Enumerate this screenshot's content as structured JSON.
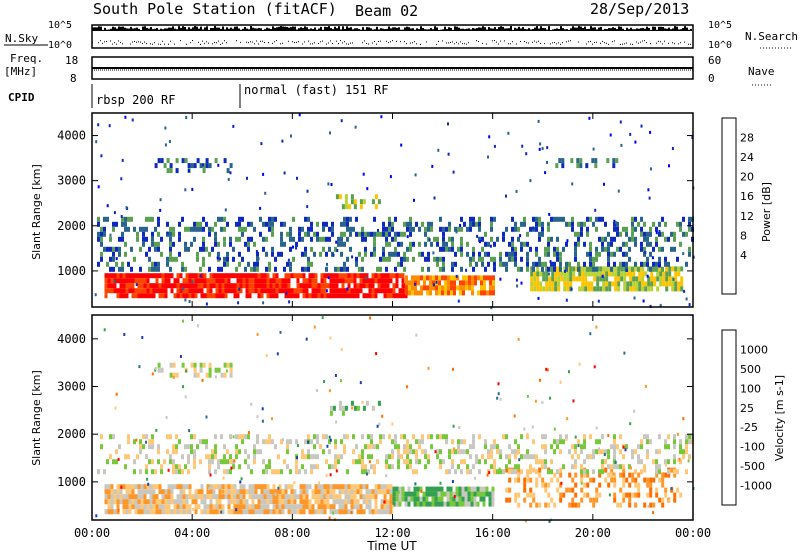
{
  "header": {
    "station": "South Pole Station (fitACF)",
    "beam": "Beam 02",
    "date": "28/Sep/2013"
  },
  "top_panels": {
    "nsky_label": "N.Sky",
    "nsky_ticks": [
      "10^5",
      "10^0"
    ],
    "nsearch_label": "N.Search",
    "nsearch_ticks": [
      "10^5",
      "10^0"
    ],
    "freq_label": "Freq.",
    "freq_unit": "[MHz]",
    "freq_ticks": [
      "18",
      "8"
    ],
    "nave_label": "Nave",
    "nave_ticks": [
      "60",
      "0"
    ],
    "cpid_label": "CPID",
    "cpid_segments": [
      {
        "label": "rbsp 200 RF",
        "start_hour": 0
      },
      {
        "label": "normal (fast) 151 RF",
        "start_hour": 6
      }
    ]
  },
  "chart_data": [
    {
      "type": "heatmap",
      "title": "",
      "xlabel": "Time UT",
      "ylabel": "Slant Range [km]",
      "xlim_hours": [
        0,
        24
      ],
      "ylim_km": [
        200,
        4500
      ],
      "x_tick_labels": [
        "00:00",
        "04:00",
        "08:00",
        "12:00",
        "16:00",
        "20:00",
        "00:00"
      ],
      "y_tick_labels": [
        "1000",
        "2000",
        "3000",
        "4000"
      ],
      "colorbar": {
        "label": "Power [dB]",
        "tick_labels": [
          "28",
          "24",
          "20",
          "16",
          "12",
          "8",
          "4"
        ],
        "colors": [
          "#ff0000",
          "#ff4400",
          "#ff8c00",
          "#ffc400",
          "#b9d232",
          "#5aa050",
          "#28648c",
          "#0f28be",
          "#0000ff"
        ]
      },
      "regions": [
        {
          "t_start": 0.5,
          "t_end": 12.5,
          "r_min": 400,
          "r_max": 950,
          "level": "very high power",
          "value_db": 28
        },
        {
          "t_start": 12.5,
          "t_end": 16.0,
          "r_min": 500,
          "r_max": 900,
          "level": "high power",
          "value_db": 22
        },
        {
          "t_start": 17.5,
          "t_end": 23.5,
          "r_min": 600,
          "r_max": 1100,
          "level": "moderate power",
          "value_db": 16
        },
        {
          "t_start": 0.2,
          "t_end": 24.0,
          "r_min": 1000,
          "r_max": 2200,
          "level": "low power",
          "value_db": 8
        },
        {
          "t_start": 2.5,
          "t_end": 5.5,
          "r_min": 3200,
          "r_max": 3500,
          "level": "low power",
          "value_db": 8
        },
        {
          "t_start": 9.5,
          "t_end": 11.5,
          "r_min": 2400,
          "r_max": 2700,
          "level": "moderate power",
          "value_db": 14
        },
        {
          "t_start": 18.5,
          "t_end": 21.0,
          "r_min": 3300,
          "r_max": 3500,
          "level": "low power",
          "value_db": 8
        }
      ]
    },
    {
      "type": "heatmap",
      "title": "",
      "xlabel": "Time UT",
      "ylabel": "Slant Range [km]",
      "xlim_hours": [
        0,
        24
      ],
      "ylim_km": [
        200,
        4500
      ],
      "x_tick_labels": [
        "00:00",
        "04:00",
        "08:00",
        "12:00",
        "16:00",
        "20:00",
        "00:00"
      ],
      "y_tick_labels": [
        "1000",
        "2000",
        "3000",
        "4000"
      ],
      "colorbar": {
        "label": "Velocity [m s-1]",
        "tick_labels": [
          "1000",
          "500",
          "100",
          "25",
          "-25",
          "-100",
          "-500",
          "-1000"
        ],
        "colors": [
          "#1e3cb4",
          "#286e8c",
          "#32a050",
          "#78c83c",
          "#c8c8c0",
          "#ffc878",
          "#ff9628",
          "#ff6e00",
          "#ff0000"
        ]
      },
      "regions": [
        {
          "t_start": 0.5,
          "t_end": 12.0,
          "r_min": 400,
          "r_max": 950,
          "level": "mixed orange/green velocities",
          "value_ms": -100
        },
        {
          "t_start": 12.0,
          "t_end": 16.0,
          "r_min": 500,
          "r_max": 900,
          "level": "green/orange",
          "value_ms": 100
        },
        {
          "t_start": 16.5,
          "t_end": 23.5,
          "r_min": 500,
          "r_max": 1300,
          "level": "orange negative velocities",
          "value_ms": -500
        },
        {
          "t_start": 0.2,
          "t_end": 24.0,
          "r_min": 1200,
          "r_max": 2000,
          "level": "near zero grey",
          "value_ms": 0
        },
        {
          "t_start": 2.5,
          "t_end": 5.5,
          "r_min": 3200,
          "r_max": 3500,
          "level": "near zero grey",
          "value_ms": 0
        },
        {
          "t_start": 9.5,
          "t_end": 11.5,
          "r_min": 2400,
          "r_max": 2700,
          "level": "green/orange",
          "value_ms": 100
        }
      ]
    }
  ]
}
